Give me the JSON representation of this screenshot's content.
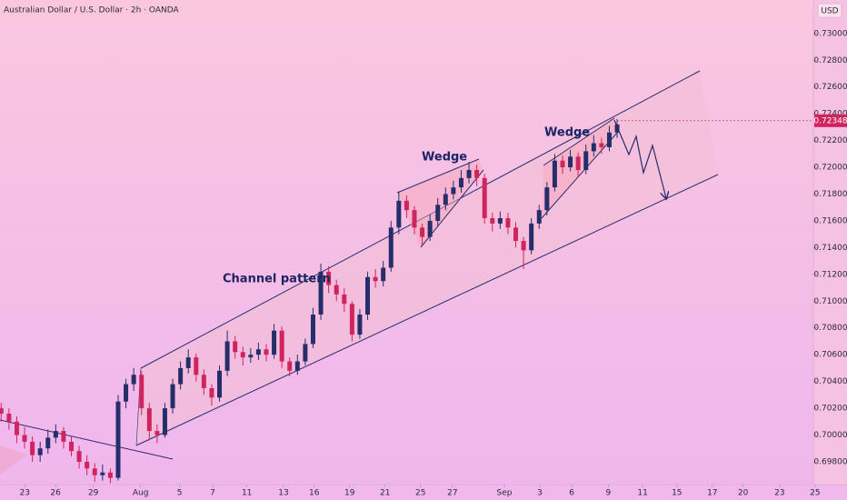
{
  "chart_data": {
    "type": "candlestick",
    "title": "Australian Dollar / U.S. Dollar · 2h · OANDA",
    "currency": "USD",
    "annotations": [
      "Channel pattern",
      "Wedge",
      "Wedge"
    ],
    "up_color": "#262d6b",
    "down_color": "#d0245e",
    "last_price": 0.72348,
    "x": [
      -2.0,
      -1.34,
      -0.68,
      -0.02,
      0.64,
      1.3,
      1.96,
      2.62,
      3.28,
      3.94,
      4.6,
      5.26,
      5.92,
      6.58,
      7.24,
      7.9,
      8.56,
      9.22,
      9.88,
      10.54,
      11.2,
      11.86,
      12.52,
      13.18,
      13.84,
      14.5,
      15.16,
      15.82,
      16.48,
      17.14,
      17.8,
      18.46,
      19.12,
      19.78,
      20.44,
      21.1,
      21.76,
      22.42,
      23.08,
      23.74,
      24.4,
      25.06,
      25.72,
      26.38,
      27.04,
      27.7,
      28.36,
      29.02,
      29.68,
      30.34,
      31.0,
      31.66,
      32.32,
      32.98,
      33.64,
      34.3,
      34.96,
      35.62,
      36.28,
      36.94,
      37.6,
      38.26,
      38.92,
      39.58,
      40.24,
      40.9,
      41.56,
      42.22,
      42.88,
      43.54,
      44.2,
      44.86,
      45.52,
      46.18,
      46.84,
      47.5,
      48.16,
      48.82,
      49.48,
      50.14
    ],
    "open": [
      0.702,
      0.7016,
      0.701,
      0.7,
      0.6995,
      0.6985,
      0.699,
      0.6998,
      0.7003,
      0.6995,
      0.6988,
      0.698,
      0.6975,
      0.697,
      0.6972,
      0.6968,
      0.7025,
      0.7038,
      0.7045,
      0.702,
      0.7003,
      0.7,
      0.702,
      0.7038,
      0.705,
      0.7058,
      0.7045,
      0.7035,
      0.7028,
      0.7048,
      0.707,
      0.7062,
      0.7058,
      0.706,
      0.7064,
      0.706,
      0.7078,
      0.7055,
      0.7048,
      0.7055,
      0.7068,
      0.709,
      0.7122,
      0.7112,
      0.7105,
      0.7098,
      0.7075,
      0.709,
      0.7118,
      0.7115,
      0.7125,
      0.7155,
      0.7175,
      0.7168,
      0.7155,
      0.7148,
      0.716,
      0.7172,
      0.718,
      0.7185,
      0.7192,
      0.7198,
      0.7192,
      0.7162,
      0.7158,
      0.7162,
      0.7155,
      0.7145,
      0.7138,
      0.7158,
      0.7168,
      0.7185,
      0.7205,
      0.72,
      0.7208,
      0.7198,
      0.7212,
      0.7218,
      0.7215,
      0.7226
    ],
    "high": [
      0.7024,
      0.702,
      0.7014,
      0.7006,
      0.6999,
      0.6995,
      0.7004,
      0.7008,
      0.7006,
      0.6999,
      0.6992,
      0.6985,
      0.6979,
      0.6978,
      0.6975,
      0.703,
      0.7042,
      0.705,
      0.7048,
      0.7024,
      0.7008,
      0.7024,
      0.7042,
      0.7055,
      0.7064,
      0.7061,
      0.7049,
      0.7038,
      0.7052,
      0.7078,
      0.7074,
      0.7066,
      0.7065,
      0.7069,
      0.7068,
      0.7083,
      0.7081,
      0.7058,
      0.706,
      0.7072,
      0.7095,
      0.7128,
      0.7126,
      0.7116,
      0.711,
      0.71,
      0.7094,
      0.7122,
      0.7124,
      0.713,
      0.716,
      0.7182,
      0.7179,
      0.7171,
      0.7158,
      0.7165,
      0.7177,
      0.7185,
      0.719,
      0.7198,
      0.7204,
      0.7202,
      0.7195,
      0.7166,
      0.7167,
      0.7166,
      0.7159,
      0.7148,
      0.7162,
      0.7172,
      0.7189,
      0.721,
      0.7209,
      0.7213,
      0.7211,
      0.7217,
      0.7224,
      0.7222,
      0.7231,
      0.7236
    ],
    "low": [
      0.701,
      0.7004,
      0.6994,
      0.699,
      0.698,
      0.698,
      0.6986,
      0.6994,
      0.699,
      0.6984,
      0.6975,
      0.697,
      0.6965,
      0.6966,
      0.6964,
      0.6966,
      0.702,
      0.7033,
      0.7015,
      0.6996,
      0.6994,
      0.6998,
      0.7016,
      0.7034,
      0.7046,
      0.704,
      0.703,
      0.7022,
      0.7025,
      0.7044,
      0.7057,
      0.7052,
      0.7054,
      0.7056,
      0.7055,
      0.7057,
      0.705,
      0.7044,
      0.7045,
      0.7052,
      0.7065,
      0.7086,
      0.7106,
      0.71,
      0.7092,
      0.707,
      0.7072,
      0.7086,
      0.711,
      0.7111,
      0.7122,
      0.715,
      0.7162,
      0.715,
      0.7142,
      0.7145,
      0.7156,
      0.7168,
      0.7176,
      0.7181,
      0.7188,
      0.7186,
      0.7158,
      0.7152,
      0.7154,
      0.715,
      0.714,
      0.7124,
      0.7135,
      0.7154,
      0.7164,
      0.7182,
      0.7195,
      0.7197,
      0.7193,
      0.7195,
      0.7208,
      0.721,
      0.7212,
      0.7222
    ],
    "close": [
      0.7016,
      0.701,
      0.7,
      0.6995,
      0.6985,
      0.699,
      0.6998,
      0.7003,
      0.6995,
      0.6988,
      0.698,
      0.6975,
      0.697,
      0.6972,
      0.6968,
      0.7025,
      0.7038,
      0.7045,
      0.702,
      0.7003,
      0.7,
      0.702,
      0.7038,
      0.705,
      0.7058,
      0.7045,
      0.7035,
      0.7028,
      0.7048,
      0.707,
      0.7062,
      0.7058,
      0.706,
      0.7064,
      0.706,
      0.7078,
      0.7055,
      0.7048,
      0.7055,
      0.7068,
      0.709,
      0.7122,
      0.7112,
      0.7105,
      0.7098,
      0.7075,
      0.709,
      0.7118,
      0.7115,
      0.7125,
      0.7155,
      0.7175,
      0.7168,
      0.7155,
      0.7148,
      0.716,
      0.7172,
      0.718,
      0.7185,
      0.7192,
      0.7198,
      0.7192,
      0.7162,
      0.7158,
      0.7162,
      0.7155,
      0.7145,
      0.7138,
      0.7158,
      0.7168,
      0.7185,
      0.7205,
      0.72,
      0.7208,
      0.7198,
      0.7212,
      0.7218,
      0.7215,
      0.7226,
      0.7232
    ],
    "xlim": [
      -2.1,
      69.6
    ],
    "xticks": [
      {
        "value": 0,
        "label": "23"
      },
      {
        "value": 2.6,
        "label": "26"
      },
      {
        "value": 5.8,
        "label": "29"
      },
      {
        "value": 9.8,
        "label": "Aug"
      },
      {
        "value": 13.1,
        "label": "5"
      },
      {
        "value": 15.9,
        "label": "7"
      },
      {
        "value": 18.8,
        "label": "11"
      },
      {
        "value": 21.9,
        "label": "13"
      },
      {
        "value": 24.5,
        "label": "16"
      },
      {
        "value": 27.5,
        "label": "19"
      },
      {
        "value": 30.5,
        "label": "21"
      },
      {
        "value": 33.5,
        "label": "25"
      },
      {
        "value": 36.2,
        "label": "27"
      },
      {
        "value": 40.6,
        "label": "Sep"
      },
      {
        "value": 43.6,
        "label": "3"
      },
      {
        "value": 46.3,
        "label": "6"
      },
      {
        "value": 49.4,
        "label": "9"
      },
      {
        "value": 52.3,
        "label": "11"
      },
      {
        "value": 55.2,
        "label": "15"
      },
      {
        "value": 58.2,
        "label": "17"
      },
      {
        "value": 60.8,
        "label": "20"
      },
      {
        "value": 63.9,
        "label": "23"
      },
      {
        "value": 66.9,
        "label": "25"
      }
    ],
    "ylim": [
      0.6963,
      0.7325
    ],
    "yticks": [
      {
        "value": 0.73,
        "label": "0.73000"
      },
      {
        "value": 0.728,
        "label": "0.72800"
      },
      {
        "value": 0.726,
        "label": "0.72600"
      },
      {
        "value": 0.724,
        "label": "0.72400"
      },
      {
        "value": 0.722,
        "label": "0.72200"
      },
      {
        "value": 0.72,
        "label": "0.72000"
      },
      {
        "value": 0.718,
        "label": "0.71800"
      },
      {
        "value": 0.716,
        "label": "0.71600"
      },
      {
        "value": 0.714,
        "label": "0.71400"
      },
      {
        "value": 0.712,
        "label": "0.71200"
      },
      {
        "value": 0.71,
        "label": "0.71000"
      },
      {
        "value": 0.708,
        "label": "0.70800"
      },
      {
        "value": 0.706,
        "label": "0.70600"
      },
      {
        "value": 0.704,
        "label": "0.70400"
      },
      {
        "value": 0.702,
        "label": "0.70200"
      },
      {
        "value": 0.7,
        "label": "0.70000"
      },
      {
        "value": 0.698,
        "label": "0.69800"
      }
    ]
  }
}
